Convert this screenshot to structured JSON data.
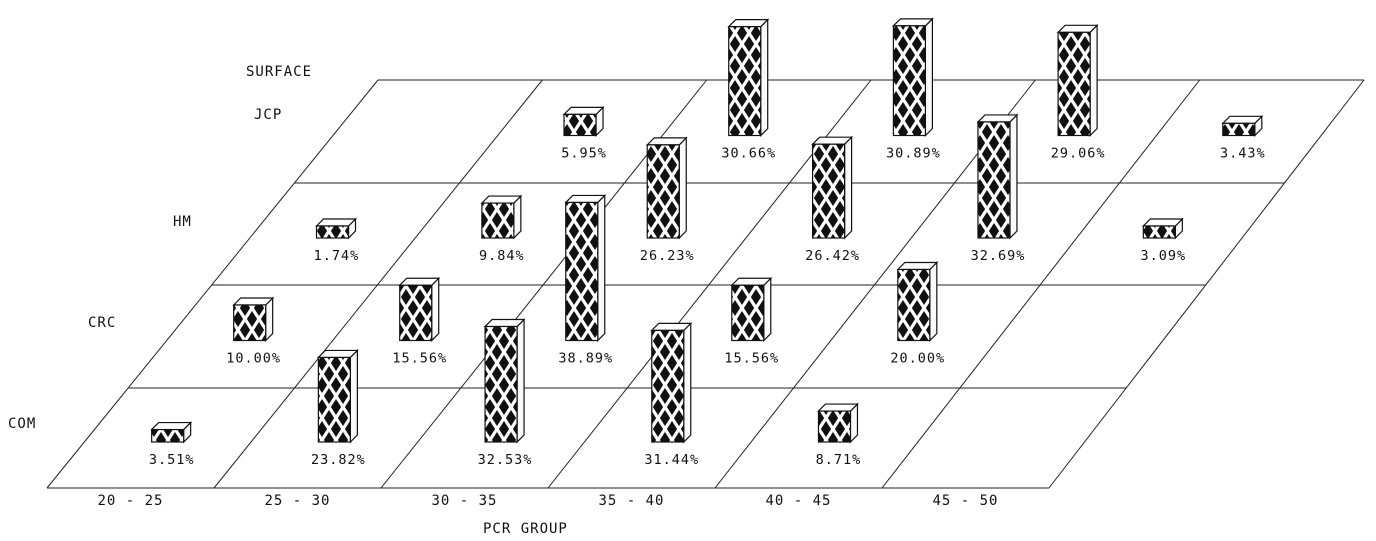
{
  "chart_data": {
    "type": "bar",
    "style": "3d-floor-bars",
    "xlabel": "PCR GROUP",
    "zlabel": "SURFACE",
    "categories": [
      "20 - 25",
      "25 - 30",
      "30 - 35",
      "35 - 40",
      "40 - 45",
      "45 - 50"
    ],
    "series": [
      {
        "name": "JCP",
        "values": [
          null,
          5.95,
          30.66,
          30.89,
          29.06,
          3.43
        ],
        "labels": [
          "",
          "5.95%",
          "30.66%",
          "30.89%",
          "29.06%",
          "3.43%"
        ]
      },
      {
        "name": "HM",
        "values": [
          1.74,
          9.84,
          26.23,
          26.42,
          32.69,
          3.09
        ],
        "labels": [
          "1.74%",
          "9.84%",
          "26.23%",
          "26.42%",
          "32.69%",
          "3.09%"
        ]
      },
      {
        "name": "CRC",
        "values": [
          10.0,
          15.56,
          38.89,
          15.56,
          20.0,
          null
        ],
        "labels": [
          "10.00%",
          "15.56%",
          "38.89%",
          "15.56%",
          "20.00%",
          ""
        ]
      },
      {
        "name": "COM",
        "values": [
          3.51,
          23.82,
          32.53,
          31.44,
          8.71,
          null
        ],
        "labels": [
          "3.51%",
          "23.82%",
          "32.53%",
          "31.44%",
          "8.71%",
          ""
        ]
      }
    ],
    "colors": {
      "ink": "#111111",
      "fill": "#ffffff",
      "hatch": "#111111"
    }
  }
}
